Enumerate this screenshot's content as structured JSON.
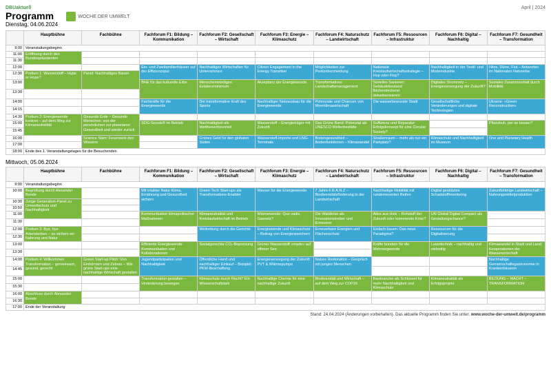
{
  "meta": {
    "dbu": "DBUaktuell",
    "month": "April | 2024",
    "title": "Programm",
    "day1": "Dienstag, 04.06.2024",
    "day2": "Mittwoch, 05.06.2024",
    "logo": "WOCHE DER UMWELT",
    "footer": "Stand: 24.04.2024 (Änderungen vorbehalten). Das aktuelle Programm finden Sie unter:",
    "url": "www.woche-der-umwelt.de/programm"
  },
  "cols": [
    "Hauptbühne",
    "Fachbühne",
    "Fachforum F1:\nBildung – Kommunikation",
    "Fachforum F2:\nGesellschaft – Wirtschaft",
    "Fachforum F3:\nEnergie – Klimaschutz",
    "Fachforum F4:\nNaturschutz – Landwirtschaft",
    "Fachforum F5:\nRessourcen – Infrastruktur",
    "Fachforum F6:\nDigital – Nachhaltig",
    "Fachforum F7:\nGesundheit – Transformation"
  ],
  "times1": [
    "9:00",
    "11:00",
    "11:30",
    "12:00",
    "12:30",
    "13:00",
    "13:30",
    "14:00",
    "14:15",
    "14:30",
    "15:00",
    "15:45",
    "16:00",
    "17:00",
    "18:00"
  ],
  "times2": [
    "9:00",
    "10:00",
    "10:30",
    "10:50",
    "11:00",
    "11:30",
    "12:00",
    "12:30",
    "13:00",
    "13:30",
    "14:00",
    "14:45",
    "15:00",
    "15:30",
    "16:00",
    "16:30",
    "17:00"
  ],
  "day1": {
    "900": {
      "hb": "Veranstaltungsbeginn"
    },
    "1100": {
      "hb": {
        "t": "Eröffnung durch den Bundespräsidenten",
        "c": "green",
        "rs": 2
      }
    },
    "1200": {
      "f1": {
        "t": "Ein- und Zweifamilienhäuser auf der Effizienzspur",
        "c": "blue",
        "rs": 2
      },
      "f2": {
        "t": "Nachhaltiges Wirtschaften für Unternehmen",
        "c": "blue",
        "rs": 2
      },
      "f3": {
        "t": "Citizen Engagement in the Energy Transition",
        "c": "blue",
        "rs": 2
      },
      "f4": {
        "t": "Möglichkeiten zur Pestizidvermeidung",
        "c": "blue",
        "rs": 2
      },
      "f5": {
        "t": "Nationale Kreislaufwirtschaftsstrategie – Hop oder Flop?",
        "c": "blue",
        "rs": 2
      },
      "f6": {
        "t": "Nachhaltigkeit in der Textil- und Modeindustrie",
        "c": "blue",
        "rs": 2
      },
      "f7": {
        "t": "Hitze, Dürre, Flut – Antworten im Nationalen Naturerbe",
        "c": "blue",
        "rs": 2
      }
    },
    "1230": {
      "hb": {
        "t": "Podium 1: Wasserstoff – Hype or Hope?",
        "c": "green",
        "rs": 2
      },
      "fb": {
        "t": "Panel: Nachhaltiges Bauen",
        "c": "green",
        "rs": 2
      }
    },
    "1300": {
      "f1": {
        "t": "BNE für das kulturelle Erbe",
        "c": "green",
        "rs": 2
      },
      "f2": {
        "t": "Menschenwürdiges Existenzminimum",
        "c": "green",
        "rs": 2
      },
      "f3": {
        "t": "Akzeptanz der Energiewende",
        "c": "green",
        "rs": 2
      },
      "f4": {
        "t": "Transformatives Landschaftsmanagement",
        "c": "green",
        "rs": 2
      },
      "f5": {
        "t": "Serielles Sanieren: Gebäudebestand flächendeckend dekarbonisieren",
        "c": "green",
        "rs": 2
      },
      "f6": {
        "t": "Digitales Stromnetz – Energieversorgung der Zukunft?",
        "c": "green",
        "rs": 2
      },
      "f7": {
        "t": "Soziales Zusammenhalt durch Mobilität",
        "c": "green",
        "rs": 2
      }
    },
    "1400": {
      "f1": {
        "t": "Fachkräfte für die Energiewende",
        "c": "blue",
        "rs": 2
      },
      "f2": {
        "t": "Die transformative Kraft des Sports",
        "c": "blue",
        "rs": 2
      },
      "f3": {
        "t": "Nachhaltiger Netzausbau für die Energiewende",
        "c": "blue",
        "rs": 2
      },
      "f4": {
        "t": "Potenziale und Chancen von Moorklimawirtschaft",
        "c": "blue",
        "rs": 2
      },
      "f5": {
        "t": "Die wasserbewusste Stadt",
        "c": "blue",
        "rs": 2
      },
      "f6": {
        "t": "Gesellschaftliche Veränderungen und digitale Technologien",
        "c": "blue",
        "rs": 2
      },
      "f7": {
        "t": "Ukraine: «Green Reconstruction»",
        "c": "blue",
        "rs": 2
      }
    },
    "1430": {
      "hb": {
        "t": "Podium 2: Energiewende konkret – auf dem Weg zur Klimaneutralität",
        "c": "green",
        "rs": 3
      },
      "fb": {
        "t": "Gesunde Erde – Gesunde Menschen: von der persönlichen zur planetaren Gesundheit und wieder zurück",
        "c": "green",
        "rs": 3
      }
    },
    "1500": {
      "f1": {
        "t": "SDG-Scouts® im Betrieb",
        "c": "green",
        "rs": 2
      },
      "f2": {
        "t": "Nachhaltigkeit als Wettbewerbsvorteil",
        "c": "green",
        "rs": 2
      },
      "f3": {
        "t": "Wasserstoff – Energieträger mit Zukunft",
        "c": "green",
        "rs": 2
      },
      "f4": {
        "t": "Das Grüne Band: Potenzial als UNESCO Welterbestätte",
        "c": "green",
        "rs": 2
      },
      "f5": {
        "t": "Suffizienz und Reparatur: Erfolgskonzept für eine Circular Society?",
        "c": "green",
        "rs": 2
      },
      "f7": {
        "t": "Pflanzkuh, per se besser?",
        "c": "green",
        "rs": 2
      }
    },
    "1600": {
      "fb": {
        "t": "Science Slam: Feuerwerk des Wissens",
        "c": "green",
        "rs": 2
      },
      "f2": {
        "t": "Grünes Geld für den globalen Süden",
        "c": "blue",
        "rs": 2
      },
      "f3": {
        "t": "Wasserstoff-Importe und LNG-Terminals",
        "c": "blue",
        "rs": 2
      },
      "f4": {
        "t": "Bodengesundheit – Bodenfunktionen – Klimawandel",
        "c": "blue",
        "rs": 2
      },
      "f5": {
        "t": "Straßenraum – mehr als nur ein Parkplatz?",
        "c": "blue",
        "rs": 2
      },
      "f6": {
        "t": "Klimaschutz und Nachhaltigkeit im Museum",
        "c": "blue",
        "rs": 2
      },
      "f7": {
        "t": "One and Planetary Health",
        "c": "blue",
        "rs": 2
      }
    },
    "1800": {
      "hb": "Ende des 1. Veranstaltungstages für die Besuchenden"
    }
  },
  "day2": {
    "900": {
      "hb": "Veranstaltungsbeginn"
    },
    "1000": {
      "hb": {
        "t": "Begrüßung durch Alexander Bonde",
        "c": "green",
        "rs": 1
      },
      "f1": {
        "t": "Mit intakter Natur Klima, Ernährung und Gesundheit sichern",
        "c": "blue",
        "rs": 3
      },
      "f2": {
        "t": "Green-Tech Start-ups als Transformations-Enabler",
        "c": "blue",
        "rs": 3
      },
      "f3": {
        "t": "Wasser für die Energiewende",
        "c": "blue",
        "rs": 3
      },
      "f4": {
        "t": "7 Jahre F.R.A.N.Z – Biodiversitätsförderung in der Landwirtschaft",
        "c": "blue",
        "rs": 3
      },
      "f5": {
        "t": "Nachhaltige Mobilität mit runderneuerten Reifen",
        "c": "blue",
        "rs": 3
      },
      "f6": {
        "t": "Digital gestütztes Schadstoffmonitoring",
        "c": "blue",
        "rs": 3
      },
      "f7": {
        "t": "Zukunftsfähige Landwirtschaft – Nahrungsmittelproduktion",
        "c": "blue",
        "rs": 3
      }
    },
    "1030": {
      "hb": {
        "t": "Junge Generation-Panel zu Umweltschutz und Nachhaltigkeit",
        "c": "green",
        "rs": 3
      }
    },
    "1100": {
      "f1": {
        "t": "Kommunikation klimapolitischer Maßnahmen",
        "c": "green",
        "rs": 2
      },
      "f2": {
        "t": "Klimaneutralität und Kreislaufwirtschaft im Betrieb",
        "c": "green",
        "rs": 2
      },
      "f3": {
        "t": "Wärmewende: Quo vadis, Gasnetz?",
        "c": "green",
        "rs": 2
      },
      "f4": {
        "t": "Die Waldkrise als Innovationstreiber und Erneuerer",
        "c": "green",
        "rs": 2
      },
      "f5": {
        "t": "Alles aus Holz – Rohstoff der Zukunft oder kommende Krise?",
        "c": "green",
        "rs": 2
      },
      "f6": {
        "t": "UN Global Digital Compact als Gestaltungschance?",
        "c": "green",
        "rs": 2
      }
    },
    "1200": {
      "hb": {
        "t": "Podium 3: Bye, bye Artensterben – so sichern wir Nahrung und Natur",
        "c": "green",
        "rs": 2
      },
      "f2": {
        "t": "Weltrettung durch die Gerichte",
        "c": "blue",
        "rs": 2
      },
      "f3": {
        "t": "Energiewende und Klimaschutz – Beitrag von Energiespeichern",
        "c": "blue",
        "rs": 2
      },
      "f4": {
        "t": "Erneuerbare Energien und Flächenschutz",
        "c": "blue",
        "rs": 2
      },
      "f5": {
        "t": "Einfach bauen: Das neue Paradigma?",
        "c": "blue",
        "rs": 2
      },
      "f6": {
        "t": "Ressourcen für die Digitalisierung",
        "c": "blue",
        "rs": 2
      }
    },
    "1300": {
      "f1": {
        "t": "Effiziente Energiewende: Kommunikation und Kollaborationen",
        "c": "green",
        "rs": 2
      },
      "f2": {
        "t": "Sozialgerechte CO₂-Bepreisung",
        "c": "green",
        "rs": 2
      },
      "f3": {
        "t": "Grüner Wasserstoff «made» auf offener See",
        "c": "green",
        "rs": 2
      },
      "f5": {
        "t": "Kräfte bündeln für die Mehrwegwende",
        "c": "green",
        "rs": 2
      },
      "f6": {
        "t": "Lasertechnik – nachhaltig und vielseitig",
        "c": "green",
        "rs": 2
      },
      "f7": {
        "t": "Klimawandel in Stadt und Land: Kooperationen der Wasserwirtschaft",
        "c": "green",
        "rs": 2
      }
    },
    "1400": {
      "hb": {
        "t": "Podium 4: Willkommen Transformation – gemeinsam, gesund, gerecht",
        "c": "green",
        "rs": 2
      },
      "fb": {
        "t": "Green Start-up Pitch: Von Einhörnern und Zebras – Wie grüne Start-ups eine nachhaltige Wirtschaft gestalten",
        "c": "green",
        "rs": 2
      },
      "f1": {
        "t": "Jugendpartizipation und Nachhaltigkeit",
        "c": "blue",
        "rs": 2
      },
      "f2": {
        "t": "Öffentliche Hand und nachhaltiger Einkauf – Beispiel PKW-Beschaffung",
        "c": "blue",
        "rs": 2
      },
      "f3": {
        "t": "Energieversorgung der Zukunft: PVT & Wärmepumpe",
        "c": "blue",
        "rs": 2
      },
      "f4": {
        "t": "Nature Restoration – Gespräch mit jungen Menschen",
        "c": "blue",
        "rs": 2
      },
      "f7": {
        "t": "Nachhaltige Gemeinschaftsgastronomie in Krankenhäusern",
        "c": "blue",
        "rs": 2
      }
    },
    "1500": {
      "f1": {
        "t": "Transformation gestalten – Veränderung bewegen",
        "c": "green",
        "rs": 2
      },
      "f2": {
        "t": "Klimaschutz durch Recht? Ein Wissenschaftstalk",
        "c": "green",
        "rs": 2
      },
      "f3": {
        "t": "Nachhaltige Chemie für eine nachhaltige Zukunft",
        "c": "green",
        "rs": 2
      },
      "f4": {
        "t": "Biodiversität und Wirtschaft – auf dem Weg zur COP16",
        "c": "green",
        "rs": 2
      },
      "f5": {
        "t": "Baubranche als Schlüssel für mehr Nachhaltigkeit und Klimaschutz",
        "c": "green",
        "rs": 2
      },
      "f6": {
        "t": "Klimaneutralität als Erfolgsprojekt",
        "c": "green",
        "rs": 2
      },
      "f7": {
        "t": "BILDUNG – MACHT – TRANSFORMATION",
        "c": "green",
        "rs": 2
      }
    },
    "1600": {
      "hb": {
        "t": "Abschluss durch Alexander Bonde",
        "c": "green",
        "rs": 2
      }
    },
    "1700": {
      "hb": "Ende der Veranstaltung"
    }
  }
}
